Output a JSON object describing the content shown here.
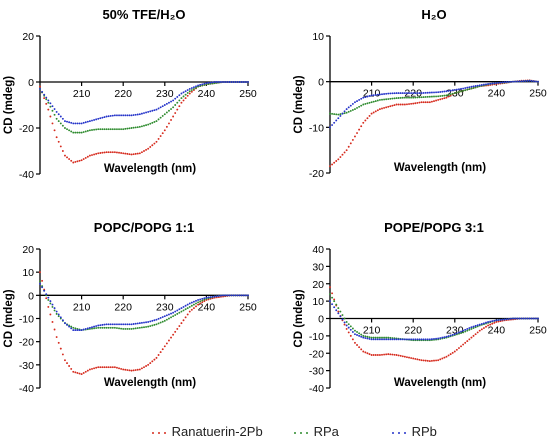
{
  "colors": {
    "ranatuerin": "#d62b1e",
    "rpa": "#2e8b2e",
    "rpb": "#2433c9",
    "axis": "#000000"
  },
  "legend": {
    "ranatuerin": "Ranatuerin-2Pb",
    "rpa": "RPa",
    "rpb": "RPb"
  },
  "chart_data": [
    {
      "type": "scatter",
      "title": "50% TFE/H₂O",
      "xlabel": "Wavelength (nm)",
      "ylabel": "CD (mdeg)",
      "xlim": [
        200,
        250
      ],
      "ylim": [
        -40,
        20
      ],
      "xticks": [
        210,
        220,
        230,
        240,
        250
      ],
      "yticks": [
        -40,
        -20,
        0,
        20
      ],
      "series": [
        {
          "name": "Ranatuerin-2Pb",
          "x": [
            200,
            202,
            204,
            206,
            208,
            210,
            212,
            214,
            216,
            218,
            220,
            222,
            224,
            226,
            228,
            230,
            232,
            234,
            236,
            238,
            240,
            242,
            244,
            246,
            248,
            250
          ],
          "y": [
            -2,
            -12,
            -24,
            -32,
            -35,
            -34,
            -32,
            -31,
            -30.5,
            -30.5,
            -31,
            -31.5,
            -31,
            -29,
            -26,
            -21,
            -15,
            -9,
            -5,
            -2,
            -1,
            -0.5,
            0,
            0,
            0,
            0
          ]
        },
        {
          "name": "RPa",
          "x": [
            200,
            202,
            204,
            206,
            208,
            210,
            212,
            214,
            216,
            218,
            220,
            222,
            224,
            226,
            228,
            230,
            232,
            234,
            236,
            238,
            240,
            242,
            244,
            246,
            248,
            250
          ],
          "y": [
            -3,
            -9,
            -16,
            -20,
            -22,
            -22,
            -21,
            -20.5,
            -20.5,
            -20.5,
            -20.5,
            -20,
            -19.5,
            -18.5,
            -17,
            -14,
            -11,
            -7,
            -4,
            -2,
            -1,
            -0.5,
            0,
            0,
            0,
            0
          ]
        },
        {
          "name": "RPb",
          "x": [
            200,
            202,
            204,
            206,
            208,
            210,
            212,
            214,
            216,
            218,
            220,
            222,
            224,
            226,
            228,
            230,
            232,
            234,
            236,
            238,
            240,
            242,
            244,
            246,
            248,
            250
          ],
          "y": [
            -3,
            -8,
            -13,
            -17,
            -18,
            -18,
            -17,
            -16,
            -15,
            -14.5,
            -14.5,
            -14.5,
            -14,
            -13,
            -12,
            -10,
            -8,
            -5,
            -3,
            -1.5,
            -0.5,
            0,
            0,
            0,
            0,
            0
          ]
        }
      ]
    },
    {
      "type": "scatter",
      "title": "H₂O",
      "xlabel": "Wavelength (nm)",
      "ylabel": "CD (mdeg)",
      "xlim": [
        200,
        250
      ],
      "ylim": [
        -20,
        10
      ],
      "xticks": [
        210,
        220,
        230,
        240,
        250
      ],
      "yticks": [
        -20,
        -10,
        0,
        10
      ],
      "series": [
        {
          "name": "Ranatuerin-2Pb",
          "x": [
            200,
            202,
            204,
            206,
            208,
            210,
            212,
            214,
            216,
            218,
            220,
            222,
            224,
            226,
            228,
            230,
            232,
            234,
            236,
            238,
            240,
            242,
            244,
            246,
            248,
            250
          ],
          "y": [
            -18.5,
            -17,
            -15,
            -12,
            -9,
            -7,
            -6,
            -5.5,
            -5,
            -5,
            -4.8,
            -4.5,
            -4.5,
            -4,
            -3.5,
            -2.5,
            -2,
            -1.5,
            -1,
            -0.8,
            -0.5,
            -0.3,
            0,
            0.2,
            0.3,
            0
          ]
        },
        {
          "name": "RPa",
          "x": [
            200,
            202,
            204,
            206,
            208,
            210,
            212,
            214,
            216,
            218,
            220,
            222,
            224,
            226,
            228,
            230,
            232,
            234,
            236,
            238,
            240,
            242,
            244,
            246,
            248,
            250
          ],
          "y": [
            -7,
            -7.2,
            -6.8,
            -6,
            -5,
            -4.5,
            -4,
            -3.8,
            -3.6,
            -3.5,
            -3.5,
            -3.4,
            -3.3,
            -3.2,
            -3,
            -2.5,
            -2,
            -1.5,
            -1,
            -0.6,
            -0.3,
            -0.2,
            0,
            0.1,
            0.2,
            0
          ]
        },
        {
          "name": "RPb",
          "x": [
            200,
            202,
            204,
            206,
            208,
            210,
            212,
            214,
            216,
            218,
            220,
            222,
            224,
            226,
            228,
            230,
            232,
            234,
            236,
            238,
            240,
            242,
            244,
            246,
            248,
            250
          ],
          "y": [
            -10,
            -8,
            -6,
            -4.5,
            -3.5,
            -3,
            -2.8,
            -2.6,
            -2.5,
            -2.5,
            -2.5,
            -2.5,
            -2.4,
            -2.3,
            -2.1,
            -1.8,
            -1.5,
            -1.1,
            -0.8,
            -0.5,
            -0.3,
            -0.1,
            0,
            0.1,
            0.2,
            0
          ]
        }
      ]
    },
    {
      "type": "scatter",
      "title": "POPC/POPG 1:1",
      "xlabel": "Wavelength (nm)",
      "ylabel": "CD (mdeg)",
      "xlim": [
        200,
        250
      ],
      "ylim": [
        -40,
        20
      ],
      "xticks": [
        210,
        220,
        230,
        240,
        250
      ],
      "yticks": [
        -40,
        -30,
        -20,
        -10,
        0,
        10,
        20
      ],
      "series": [
        {
          "name": "Ranatuerin-2Pb",
          "x": [
            200,
            202,
            204,
            206,
            208,
            210,
            212,
            214,
            216,
            218,
            220,
            222,
            224,
            226,
            228,
            230,
            232,
            234,
            236,
            238,
            240,
            242,
            244,
            246,
            248,
            250
          ],
          "y": [
            10,
            -5,
            -18,
            -28,
            -33,
            -34,
            -32,
            -31,
            -31,
            -31,
            -32,
            -32.5,
            -32,
            -30,
            -27,
            -22,
            -17,
            -12,
            -7,
            -4,
            -2,
            -1,
            -0.5,
            0,
            0,
            0
          ]
        },
        {
          "name": "RPa",
          "x": [
            200,
            202,
            204,
            206,
            208,
            210,
            212,
            214,
            216,
            218,
            220,
            222,
            224,
            226,
            228,
            230,
            232,
            234,
            236,
            238,
            240,
            242,
            244,
            246,
            248,
            250
          ],
          "y": [
            6,
            -2,
            -8,
            -12,
            -14,
            -15,
            -14.5,
            -14,
            -14,
            -14,
            -14.5,
            -14.5,
            -14,
            -13.5,
            -12.5,
            -11,
            -9,
            -7,
            -5,
            -3,
            -1.5,
            -0.5,
            0,
            0,
            0,
            0
          ]
        },
        {
          "name": "RPb",
          "x": [
            200,
            202,
            204,
            206,
            208,
            210,
            212,
            214,
            216,
            218,
            220,
            222,
            224,
            226,
            228,
            230,
            232,
            234,
            236,
            238,
            240,
            242,
            244,
            246,
            248,
            250
          ],
          "y": [
            5,
            -1,
            -7,
            -12,
            -15,
            -15,
            -14,
            -13,
            -12.5,
            -12.5,
            -12.5,
            -12.5,
            -12,
            -11.5,
            -10.5,
            -9,
            -7.5,
            -5.5,
            -3.5,
            -2,
            -1,
            -0.5,
            0,
            0,
            0,
            0
          ]
        }
      ]
    },
    {
      "type": "scatter",
      "title": "POPE/POPG 3:1",
      "xlabel": "Wavelength (nm)",
      "ylabel": "CD (mdeg)",
      "xlim": [
        200,
        250
      ],
      "ylim": [
        -40,
        40
      ],
      "xticks": [
        210,
        220,
        230,
        240,
        250
      ],
      "yticks": [
        -40,
        -30,
        -20,
        -10,
        0,
        10,
        20,
        30,
        40
      ],
      "series": [
        {
          "name": "Ranatuerin-2Pb",
          "x": [
            200,
            202,
            204,
            206,
            208,
            210,
            212,
            214,
            216,
            218,
            220,
            222,
            224,
            226,
            228,
            230,
            232,
            234,
            236,
            238,
            240,
            242,
            244,
            246,
            248,
            250
          ],
          "y": [
            18,
            4,
            -6,
            -14,
            -19,
            -21,
            -21,
            -20.5,
            -21,
            -22,
            -23,
            -24,
            -24.5,
            -24,
            -22,
            -19,
            -15,
            -11,
            -7,
            -4,
            -2,
            -1,
            -0.5,
            0,
            0,
            0
          ]
        },
        {
          "name": "RPa",
          "x": [
            200,
            202,
            204,
            206,
            208,
            210,
            212,
            214,
            216,
            218,
            220,
            222,
            224,
            226,
            228,
            230,
            232,
            234,
            236,
            238,
            240,
            242,
            244,
            246,
            248,
            250
          ],
          "y": [
            14,
            6,
            -2,
            -7,
            -10,
            -11,
            -11,
            -11,
            -11.5,
            -12,
            -12.5,
            -12.5,
            -12.5,
            -12,
            -11,
            -9.5,
            -8,
            -6,
            -4,
            -2.5,
            -1,
            -0.5,
            0,
            0,
            0,
            0
          ]
        },
        {
          "name": "RPb",
          "x": [
            200,
            202,
            204,
            206,
            208,
            210,
            212,
            214,
            216,
            218,
            220,
            222,
            224,
            226,
            228,
            230,
            232,
            234,
            236,
            238,
            240,
            242,
            244,
            246,
            248,
            250
          ],
          "y": [
            10,
            3,
            -4,
            -9,
            -11,
            -12,
            -12,
            -12,
            -12,
            -12,
            -12,
            -12,
            -12,
            -11.5,
            -10.5,
            -9,
            -7,
            -5,
            -3.5,
            -2,
            -1,
            -0.5,
            0,
            0,
            0,
            0
          ]
        }
      ]
    }
  ]
}
